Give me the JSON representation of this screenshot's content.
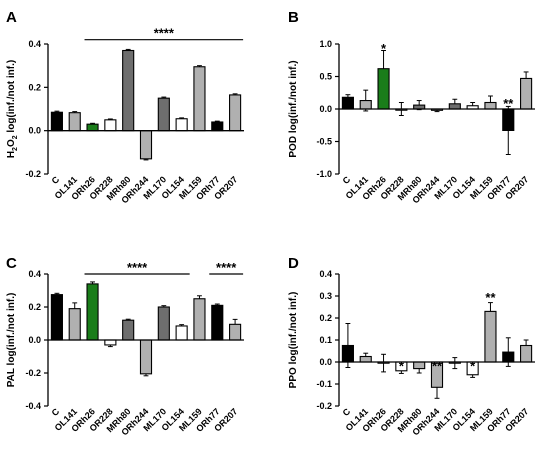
{
  "colors": {
    "black": "#000000",
    "white": "#ffffff",
    "green": "#1a7d1a",
    "light_gray": "#b0b0b0",
    "dark_gray": "#6e6e6e"
  },
  "chart_data": [
    {
      "panel": "A",
      "type": "bar",
      "ylabel_main": "H",
      "ylabel_sub1": "2",
      "ylabel_mid": "O",
      "ylabel_sub2": "2",
      "ylabel_tail": " log(inf./not inf.)",
      "ylim": [
        -0.2,
        0.4
      ],
      "yticks": [
        "0.4",
        "0.2",
        "0.0",
        "-0.2"
      ],
      "ytick_values": [
        0.4,
        0.2,
        0.0,
        -0.2
      ],
      "categories": [
        "C",
        "OL141",
        "ORh26",
        "OR228",
        "MRh80",
        "ORh244",
        "ML170",
        "OL154",
        "ML159",
        "ORh77",
        "OR207"
      ],
      "values": [
        0.085,
        0.083,
        0.03,
        0.05,
        0.37,
        -0.13,
        0.15,
        0.055,
        0.295,
        0.04,
        0.165
      ],
      "errors": [
        0.005,
        0.005,
        0.004,
        0.004,
        0.005,
        0.005,
        0.005,
        0.004,
        0.005,
        0.004,
        0.005
      ],
      "fills": [
        "black",
        "light_gray",
        "green",
        "white",
        "dark_gray",
        "light_gray",
        "dark_gray",
        "white",
        "light_gray",
        "black",
        "light_gray"
      ],
      "significance": [
        {
          "text": "****",
          "from": 2,
          "to": 10,
          "y": 0.42
        }
      ]
    },
    {
      "panel": "B",
      "type": "bar",
      "ylabel": "POD log(inf./not inf.)",
      "ylim": [
        -1.0,
        1.0
      ],
      "yticks": [
        "1.0",
        "0.5",
        "0.0",
        "-0.5",
        "-1.0"
      ],
      "ytick_values": [
        1.0,
        0.5,
        0.0,
        -0.5,
        -1.0
      ],
      "categories": [
        "C",
        "OL141",
        "ORh26",
        "OR228",
        "MRh80",
        "ORh244",
        "ML170",
        "OL154",
        "ML159",
        "ORh77",
        "OR207"
      ],
      "values": [
        0.18,
        0.13,
        0.62,
        0.0,
        0.06,
        -0.02,
        0.08,
        0.05,
        0.1,
        -0.33,
        0.47
      ],
      "errors": [
        0.04,
        0.16,
        0.28,
        0.1,
        0.07,
        0.02,
        0.07,
        0.05,
        0.1,
        0.37,
        0.1
      ],
      "fills": [
        "black",
        "light_gray",
        "green",
        "white",
        "dark_gray",
        "light_gray",
        "dark_gray",
        "white",
        "light_gray",
        "black",
        "light_gray"
      ],
      "significance": [
        {
          "text": "*",
          "from": 2,
          "to": 2,
          "y": 0.92
        },
        {
          "text": "**",
          "from": 9,
          "to": 9,
          "y": 0.08
        }
      ]
    },
    {
      "panel": "C",
      "type": "bar",
      "ylabel": "PAL log(inf./not inf.)",
      "ylim": [
        -0.4,
        0.4
      ],
      "yticks": [
        "0.4",
        "0.2",
        "0.0",
        "-0.2",
        "-0.4"
      ],
      "ytick_values": [
        0.4,
        0.2,
        0.0,
        -0.2,
        -0.4
      ],
      "categories": [
        "C",
        "OL141",
        "ORh26",
        "OR228",
        "MRh80",
        "ORh244",
        "ML170",
        "OL154",
        "ML159",
        "ORh77",
        "OR207"
      ],
      "values": [
        0.275,
        0.19,
        0.34,
        -0.03,
        0.12,
        -0.205,
        0.2,
        0.085,
        0.25,
        0.21,
        0.095
      ],
      "errors": [
        0.008,
        0.035,
        0.012,
        0.01,
        0.006,
        0.012,
        0.008,
        0.008,
        0.018,
        0.008,
        0.03
      ],
      "fills": [
        "black",
        "light_gray",
        "green",
        "white",
        "dark_gray",
        "light_gray",
        "dark_gray",
        "white",
        "light_gray",
        "black",
        "light_gray"
      ],
      "significance": [
        {
          "text": "****",
          "from": 2,
          "to": 7,
          "y": 0.4
        },
        {
          "text": "****",
          "from": 9,
          "to": 10,
          "y": 0.4
        }
      ]
    },
    {
      "panel": "D",
      "type": "bar",
      "ylabel": "PPO log(inf./not inf.)",
      "ylim": [
        -0.2,
        0.4
      ],
      "yticks": [
        "0.4",
        "0.3",
        "0.2",
        "0.1",
        "0.0",
        "-0.1",
        "-0.2"
      ],
      "ytick_values": [
        0.4,
        0.3,
        0.2,
        0.1,
        0.0,
        -0.1,
        -0.2
      ],
      "categories": [
        "C",
        "OL141",
        "ORh26",
        "OR228",
        "MRh80",
        "ORh244",
        "ML170",
        "OL154",
        "ML159",
        "ORh77",
        "OR207"
      ],
      "values": [
        0.075,
        0.025,
        -0.005,
        -0.04,
        -0.03,
        -0.115,
        -0.005,
        -0.058,
        0.23,
        0.045,
        0.075
      ],
      "errors": [
        0.1,
        0.015,
        0.04,
        0.012,
        0.02,
        0.05,
        0.025,
        0.012,
        0.04,
        0.065,
        0.025
      ],
      "fills": [
        "black",
        "light_gray",
        "white",
        "white",
        "light_gray",
        "light_gray",
        "white",
        "white",
        "light_gray",
        "black",
        "light_gray"
      ],
      "significance": [
        {
          "text": "*",
          "from": 3,
          "to": 3,
          "y": -0.02
        },
        {
          "text": "**",
          "from": 5,
          "to": 5,
          "y": -0.02
        },
        {
          "text": "*",
          "from": 7,
          "to": 7,
          "y": -0.02
        },
        {
          "text": "**",
          "from": 8,
          "to": 8,
          "y": 0.29
        }
      ]
    }
  ]
}
